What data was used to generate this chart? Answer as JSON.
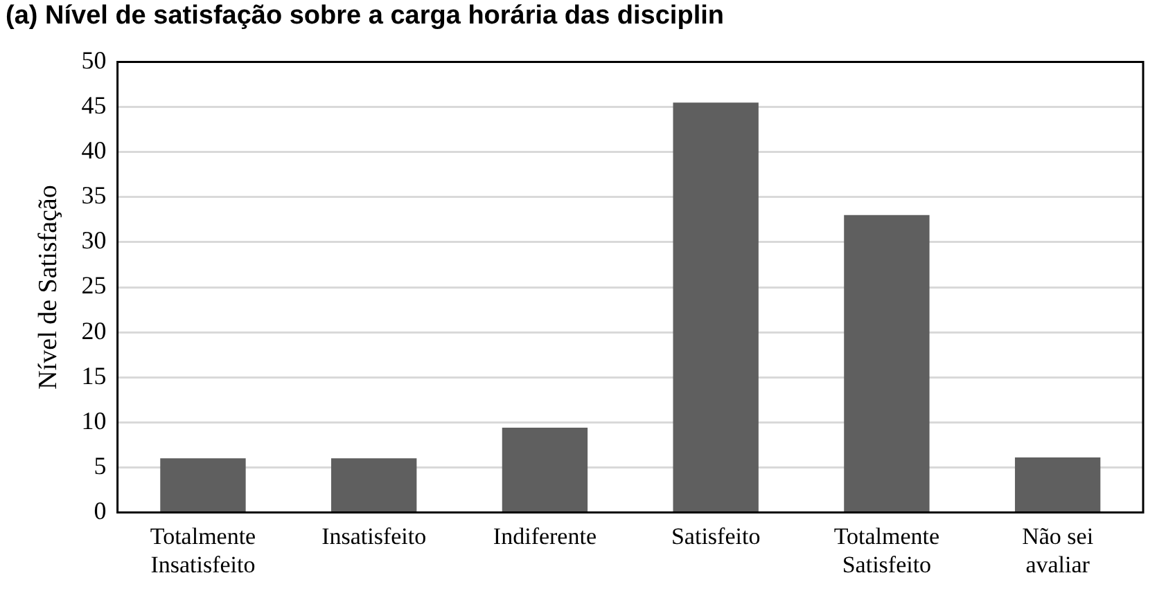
{
  "chart_data": {
    "type": "bar",
    "title": "(a) Nível de satisfação sobre a carga horária das disciplin",
    "ylabel": "Nível de Satisfação",
    "categories": [
      "Totalmente Insatisfeito",
      "Insatisfeito",
      "Indiferente",
      "Satisfeito",
      "Totalmente Satisfeito",
      "Não sei avaliar"
    ],
    "values": [
      6,
      6,
      9.4,
      45.5,
      33,
      6.1
    ],
    "color": "#5f5f5f",
    "ylim": [
      0,
      50
    ],
    "yticks": [
      0,
      5,
      10,
      15,
      20,
      25,
      30,
      35,
      40,
      45,
      50
    ],
    "grid": "y",
    "legend": false
  }
}
